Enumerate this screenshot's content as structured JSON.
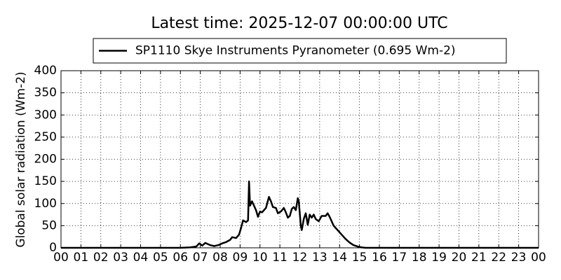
{
  "chart_data": {
    "type": "line",
    "title": "Latest time: 2025-12-07 00:00:00 UTC",
    "y_label": "Global solar radiation (Wm-2)",
    "legend_position": "upper center",
    "grid": true,
    "xlim": [
      0,
      24
    ],
    "ylim": [
      0,
      400
    ],
    "xticks": [
      {
        "value": 0,
        "label": "00"
      },
      {
        "value": 1,
        "label": "01"
      },
      {
        "value": 2,
        "label": "02"
      },
      {
        "value": 3,
        "label": "03"
      },
      {
        "value": 4,
        "label": "04"
      },
      {
        "value": 5,
        "label": "05"
      },
      {
        "value": 6,
        "label": "06"
      },
      {
        "value": 7,
        "label": "07"
      },
      {
        "value": 8,
        "label": "08"
      },
      {
        "value": 9,
        "label": "09"
      },
      10,
      11,
      12,
      13,
      14,
      15,
      16,
      17,
      18,
      19,
      20,
      21,
      22,
      23,
      {
        "value": 24,
        "label": "00"
      }
    ],
    "yticks": [
      0,
      50,
      100,
      150,
      200,
      250,
      300,
      350,
      400
    ],
    "x": [
      0,
      6,
      6.5,
      6.8,
      6.95,
      7.1,
      7.25,
      7.5,
      7.7,
      7.9,
      8.1,
      8.3,
      8.5,
      8.6,
      8.8,
      8.95,
      9.05,
      9.15,
      9.3,
      9.4,
      9.45,
      9.5,
      9.6,
      9.7,
      9.8,
      9.9,
      10.0,
      10.1,
      10.2,
      10.3,
      10.45,
      10.55,
      10.65,
      10.8,
      10.9,
      11.05,
      11.2,
      11.3,
      11.4,
      11.5,
      11.6,
      11.7,
      11.8,
      11.9,
      11.95,
      12.05,
      12.1,
      12.2,
      12.3,
      12.4,
      12.5,
      12.6,
      12.7,
      12.8,
      12.95,
      13.1,
      13.3,
      13.4,
      13.5,
      13.6,
      13.7,
      13.9,
      14.1,
      14.3,
      14.5,
      14.7,
      14.9,
      15.1,
      15.3,
      24
    ],
    "series": [
      {
        "name": "SP1110 Skye Instruments Pyranometer (0.695 Wm-2)",
        "color": "#000000",
        "values": [
          0,
          0,
          1,
          3,
          10,
          5,
          11,
          6,
          4,
          6,
          10,
          13,
          18,
          24,
          22,
          30,
          45,
          62,
          58,
          62,
          150,
          95,
          105,
          95,
          85,
          70,
          82,
          80,
          85,
          90,
          115,
          105,
          92,
          90,
          78,
          82,
          90,
          80,
          68,
          72,
          88,
          92,
          85,
          112,
          105,
          50,
          40,
          65,
          78,
          52,
          75,
          68,
          75,
          65,
          60,
          72,
          72,
          78,
          70,
          60,
          50,
          40,
          30,
          20,
          12,
          6,
          3,
          1,
          0,
          0
        ]
      }
    ]
  }
}
